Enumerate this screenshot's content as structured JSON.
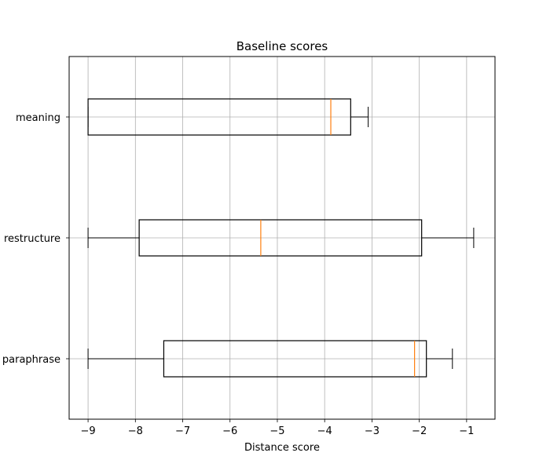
{
  "chart_data": {
    "type": "boxplot",
    "orientation": "horizontal",
    "title": "Baseline scores",
    "xlabel": "Distance score",
    "ylabel": "",
    "xlim": [
      -9.4,
      -0.4
    ],
    "xticks": [
      -9,
      -8,
      -7,
      -6,
      -5,
      -4,
      -3,
      -2,
      -1
    ],
    "xtick_labels": [
      "−9",
      "−8",
      "−7",
      "−6",
      "−5",
      "−4",
      "−3",
      "−2",
      "−1"
    ],
    "grid": true,
    "categories": [
      "paraphrase",
      "restructure",
      "meaning"
    ],
    "boxes": [
      {
        "label": "paraphrase",
        "whisker_low": -9.0,
        "q1": -7.4,
        "median": -2.1,
        "q3": -1.85,
        "whisker_high": -1.3
      },
      {
        "label": "restructure",
        "whisker_low": -9.0,
        "q1": -7.92,
        "median": -5.35,
        "q3": -1.95,
        "whisker_high": -0.85
      },
      {
        "label": "meaning",
        "whisker_low": -9.0,
        "q1": -9.0,
        "median": -3.87,
        "q3": -3.45,
        "whisker_high": -3.08
      }
    ],
    "colors": {
      "box": "#000000",
      "median": "#ff7f0e",
      "grid": "#b0b0b0"
    }
  }
}
